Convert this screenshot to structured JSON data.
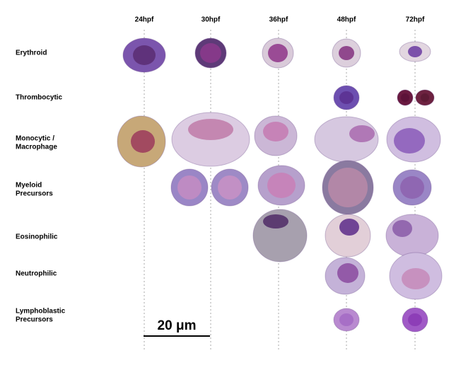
{
  "columns": [
    "24hpf",
    "30hpf",
    "36hpf",
    "48hpf",
    "72hpf"
  ],
  "rows": [
    [
      "Erythroid"
    ],
    [
      "Thrombocytic"
    ],
    [
      "Monocytic /",
      "Macrophage"
    ],
    [
      "Myeloid",
      "Precursors"
    ],
    [
      "Eosinophilic"
    ],
    [
      "Neutrophilic"
    ],
    [
      "Lymphoblastic",
      "Precursors"
    ]
  ],
  "scale_bar": "20 μm"
}
